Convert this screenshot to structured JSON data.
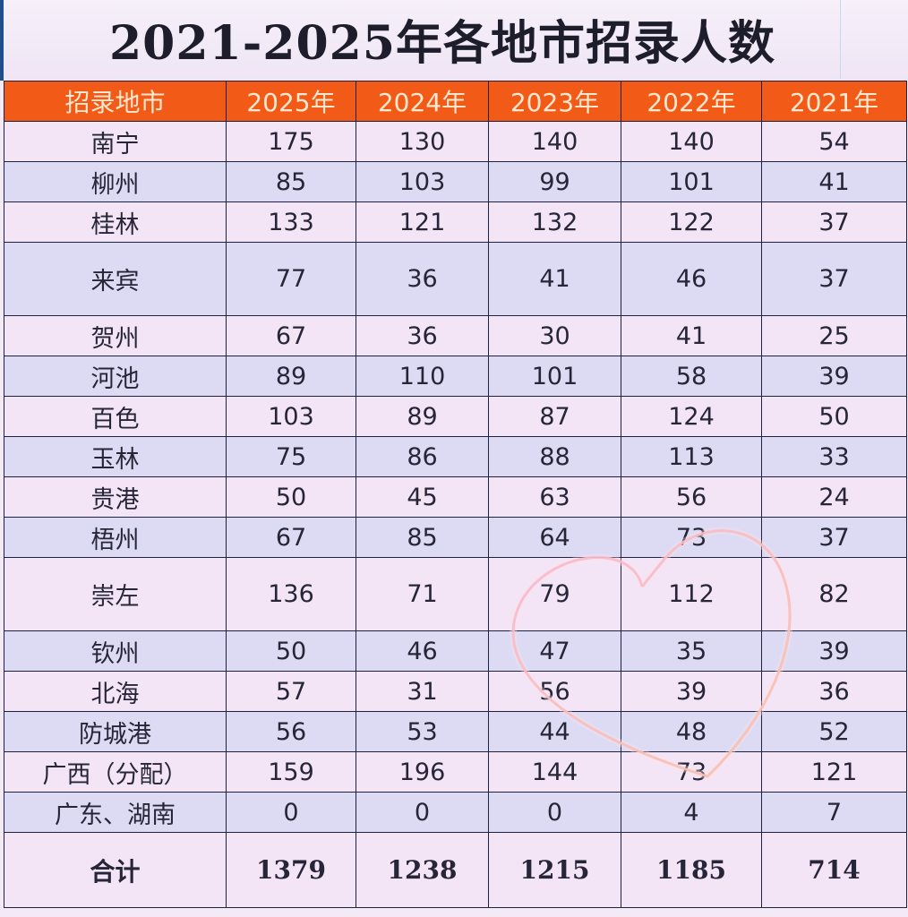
{
  "title": "2021-2025年各地市招录人数",
  "chart_data": {
    "type": "table",
    "title": "2021-2025年各地市招录人数",
    "columns": [
      "招录地市",
      "2025年",
      "2024年",
      "2023年",
      "2022年",
      "2021年"
    ],
    "rows": [
      {
        "city": "南宁",
        "values": [
          175,
          130,
          140,
          140,
          54
        ]
      },
      {
        "city": "柳州",
        "values": [
          85,
          103,
          99,
          101,
          41
        ]
      },
      {
        "city": "桂林",
        "values": [
          133,
          121,
          132,
          122,
          37
        ]
      },
      {
        "city": "来宾",
        "values": [
          77,
          36,
          41,
          46,
          37
        ]
      },
      {
        "city": "贺州",
        "values": [
          67,
          36,
          30,
          41,
          25
        ]
      },
      {
        "city": "河池",
        "values": [
          89,
          110,
          101,
          58,
          39
        ]
      },
      {
        "city": "百色",
        "values": [
          103,
          89,
          87,
          124,
          50
        ]
      },
      {
        "city": "玉林",
        "values": [
          75,
          86,
          88,
          113,
          33
        ]
      },
      {
        "city": "贵港",
        "values": [
          50,
          45,
          63,
          56,
          24
        ]
      },
      {
        "city": "梧州",
        "values": [
          67,
          85,
          64,
          73,
          37
        ]
      },
      {
        "city": "崇左",
        "values": [
          136,
          71,
          79,
          112,
          82
        ]
      },
      {
        "city": "钦州",
        "values": [
          50,
          46,
          47,
          35,
          39
        ]
      },
      {
        "city": "北海",
        "values": [
          57,
          31,
          56,
          39,
          36
        ]
      },
      {
        "city": "防城港",
        "values": [
          56,
          53,
          44,
          48,
          52
        ]
      },
      {
        "city": "广西（分配）",
        "values": [
          159,
          196,
          144,
          73,
          121
        ]
      },
      {
        "city": "广东、湖南",
        "values": [
          0,
          0,
          0,
          4,
          7
        ]
      }
    ],
    "total": {
      "label": "合计",
      "values": [
        1379,
        1238,
        1215,
        1185,
        714
      ]
    }
  },
  "colors": {
    "header_bg": "#f15a17",
    "header_text": "#ffe8cf",
    "row_light": "#f4e5f6",
    "row_dark": "#dcdbf3",
    "heart_stroke": "#f08aa8",
    "accent_stripe": "#1f4e8c"
  },
  "decoration": {
    "heart_icon": "heart-outline-icon"
  }
}
